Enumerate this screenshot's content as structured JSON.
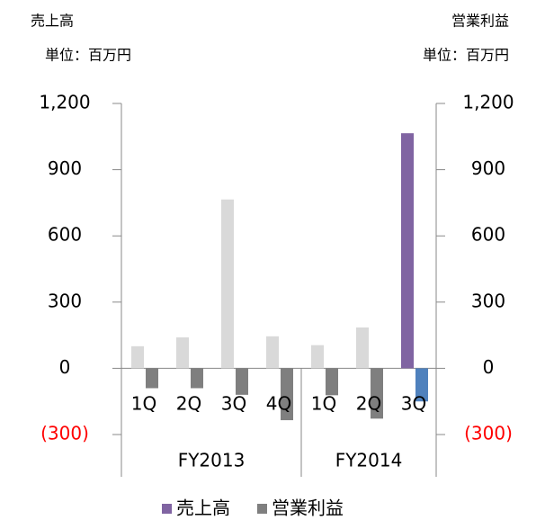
{
  "chart_data": {
    "type": "bar",
    "left_axis_title": "売上高",
    "left_axis_unit": "単位：百万円",
    "right_axis_title": "営業利益",
    "right_axis_unit": "単位：百万円",
    "categories": [
      "1Q",
      "2Q",
      "3Q",
      "4Q",
      "1Q",
      "2Q",
      "3Q"
    ],
    "groups": [
      {
        "label": "FY2013",
        "count": 4
      },
      {
        "label": "FY2014",
        "count": 3
      }
    ],
    "series": [
      {
        "name": "売上高",
        "color": "#8064a2",
        "point_colors": [
          "#d9d9d9",
          "#d9d9d9",
          "#d9d9d9",
          "#d9d9d9",
          "#d9d9d9",
          "#d9d9d9",
          "#8064a2"
        ],
        "values": [
          100,
          140,
          765,
          145,
          105,
          185,
          1065
        ]
      },
      {
        "name": "営業利益",
        "axis": "y2",
        "color": "#7f7f7f",
        "point_colors": [
          "#7f7f7f",
          "#7f7f7f",
          "#7f7f7f",
          "#7f7f7f",
          "#7f7f7f",
          "#7f7f7f",
          "#4f81bd"
        ],
        "values": [
          -90,
          -90,
          -120,
          -235,
          -122,
          -228,
          -150
        ]
      }
    ],
    "ylim": [
      -300,
      1200
    ],
    "yticks": [
      {
        "value": -300,
        "label": "(300)"
      },
      0,
      300,
      600,
      900,
      {
        "value": 1200,
        "label": "1,200"
      }
    ],
    "y2lim": [
      -300,
      1200
    ],
    "y2ticks": [
      {
        "value": -300,
        "label": "(300)"
      },
      0,
      300,
      600,
      900,
      {
        "value": 1200,
        "label": "1,200"
      }
    ],
    "negative_tick_color": "#ff0000",
    "legend": "bottom"
  }
}
